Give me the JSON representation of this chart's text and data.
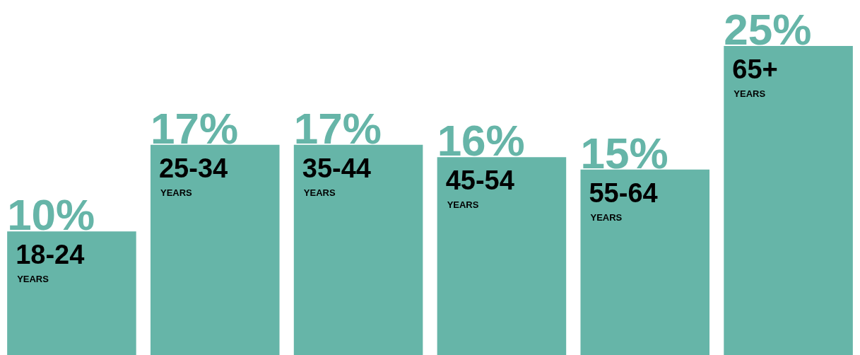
{
  "chart_data": {
    "type": "bar",
    "categories": [
      "18-24",
      "25-34",
      "35-44",
      "45-54",
      "55-64",
      "65+"
    ],
    "values": [
      10,
      17,
      17,
      16,
      15,
      25
    ],
    "value_labels": [
      "10%",
      "17%",
      "17%",
      "16%",
      "15%",
      "25%"
    ],
    "color": "#66b5a8",
    "annotations": [
      "YEARS",
      "YEARS",
      "YEARS",
      "YEARS",
      "YEARS",
      "YEARS"
    ]
  }
}
